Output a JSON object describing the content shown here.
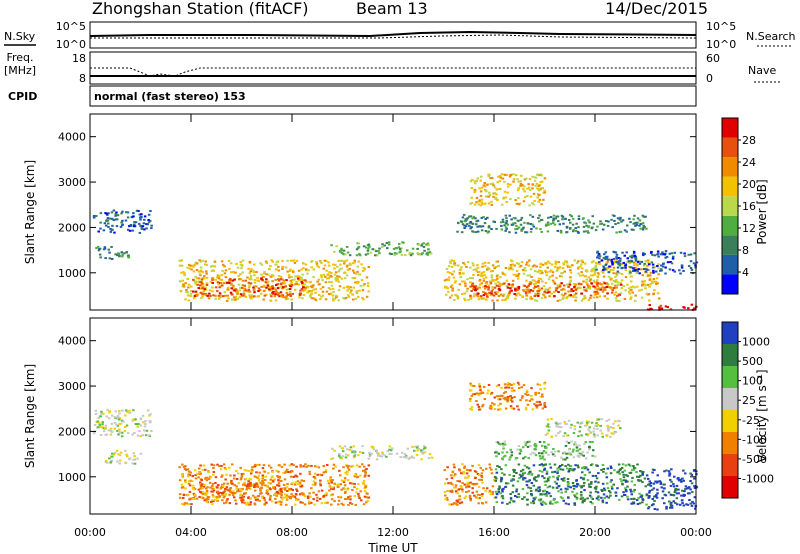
{
  "header": {
    "station": "Zhongshan Station (fitACF)",
    "beam": "Beam 13",
    "date": "14/Dec/2015"
  },
  "status_panel": {
    "nsky_label": "N.Sky",
    "nsky_ticks": [
      "10^5",
      "10^0"
    ],
    "nsearch_label": "N.Search",
    "nsearch_ticks": [
      "10^5",
      "10^0"
    ],
    "freq_label_1": "Freq.",
    "freq_label_2": "[MHz]",
    "freq_ticks": [
      "18",
      "8"
    ],
    "nave_label": "Nave",
    "nave_ticks": [
      "60",
      "0"
    ],
    "cpid_label": "CPID",
    "cpid_value": "normal (fast stereo) 153"
  },
  "colors": {
    "power": [
      "#0000ff",
      "#1f5fa8",
      "#3a7f5a",
      "#4fae3f",
      "#b9d94a",
      "#f2c100",
      "#f08b00",
      "#e85010",
      "#e00000"
    ],
    "velocity": [
      "#2040c0",
      "#2e7d3e",
      "#55c040",
      "#c8c8c8",
      "#f2d000",
      "#f08000",
      "#e84010",
      "#e00000"
    ]
  },
  "chart_data": [
    {
      "type": "heatmap",
      "title": "Power",
      "ylabel": "Slant Range [km]",
      "ylim": [
        180,
        4500
      ],
      "yticks": [
        "1000",
        "2000",
        "3000",
        "4000"
      ],
      "yticks_values": [
        1000,
        2000,
        3000,
        4000
      ],
      "xlim": [
        0,
        24
      ],
      "xticks": [
        "00:00",
        "04:00",
        "08:00",
        "12:00",
        "16:00",
        "20:00",
        "00:00"
      ],
      "colorbar": {
        "label": "Power [dB]",
        "ticks": [
          "4",
          "8",
          "12",
          "16",
          "20",
          "24",
          "28"
        ],
        "range": [
          0,
          30
        ]
      },
      "regions": [
        {
          "t": [
            0.1,
            2.4
          ],
          "r": [
            1900,
            2400
          ],
          "level": 1
        },
        {
          "t": [
            0.2,
            1.5
          ],
          "r": [
            1300,
            1600
          ],
          "level": 2
        },
        {
          "t": [
            3.5,
            11.0
          ],
          "r": [
            400,
            1300
          ],
          "level": 5
        },
        {
          "t": [
            4.0,
            8.5
          ],
          "r": [
            500,
            900
          ],
          "level": 7
        },
        {
          "t": [
            9.5,
            13.5
          ],
          "r": [
            1400,
            1700
          ],
          "level": 3
        },
        {
          "t": [
            14.0,
            22.5
          ],
          "r": [
            400,
            1300
          ],
          "level": 5
        },
        {
          "t": [
            15.0,
            21.0
          ],
          "r": [
            500,
            800
          ],
          "level": 7
        },
        {
          "t": [
            14.5,
            22.0
          ],
          "r": [
            1900,
            2300
          ],
          "level": 2
        },
        {
          "t": [
            15.0,
            18.0
          ],
          "r": [
            2500,
            3200
          ],
          "level": 5
        },
        {
          "t": [
            22.0,
            24.0
          ],
          "r": [
            200,
            320
          ],
          "level": 8
        },
        {
          "t": [
            20.0,
            24.0
          ],
          "r": [
            1000,
            1500
          ],
          "level": 1
        }
      ]
    },
    {
      "type": "heatmap",
      "title": "Velocity",
      "ylabel": "Slant Range [km]",
      "ylim": [
        180,
        4500
      ],
      "yticks": [
        "1000",
        "2000",
        "3000",
        "4000"
      ],
      "yticks_values": [
        1000,
        2000,
        3000,
        4000
      ],
      "xlim": [
        0,
        24
      ],
      "xlabel": "Time UT",
      "xticks": [
        "00:00",
        "04:00",
        "08:00",
        "12:00",
        "16:00",
        "20:00",
        "00:00"
      ],
      "colorbar": {
        "label": "Velocity [m s⁻¹]",
        "ticks": [
          "1000",
          "500",
          "100",
          "25",
          "-25",
          "-100",
          "-500",
          "-1000"
        ]
      },
      "regions": [
        {
          "t": [
            0.1,
            2.4
          ],
          "r": [
            1900,
            2500
          ],
          "level": 3
        },
        {
          "t": [
            0.5,
            2.0
          ],
          "r": [
            1300,
            1600
          ],
          "level": 3
        },
        {
          "t": [
            3.5,
            11.0
          ],
          "r": [
            400,
            1300
          ],
          "level": 5
        },
        {
          "t": [
            4.0,
            8.5
          ],
          "r": [
            500,
            900
          ],
          "level": 5
        },
        {
          "t": [
            9.5,
            13.5
          ],
          "r": [
            1400,
            1700
          ],
          "level": 3
        },
        {
          "t": [
            14.0,
            16.0
          ],
          "r": [
            400,
            1300
          ],
          "level": 5
        },
        {
          "t": [
            16.0,
            22.0
          ],
          "r": [
            400,
            1300
          ],
          "level": 1
        },
        {
          "t": [
            22.0,
            24.0
          ],
          "r": [
            300,
            1200
          ],
          "level": 0
        },
        {
          "t": [
            15.0,
            18.0
          ],
          "r": [
            2500,
            3100
          ],
          "level": 5
        },
        {
          "t": [
            18.0,
            21.0
          ],
          "r": [
            1900,
            2300
          ],
          "level": 3
        },
        {
          "t": [
            16.0,
            20.0
          ],
          "r": [
            1400,
            1800
          ],
          "level": 2
        }
      ]
    }
  ]
}
